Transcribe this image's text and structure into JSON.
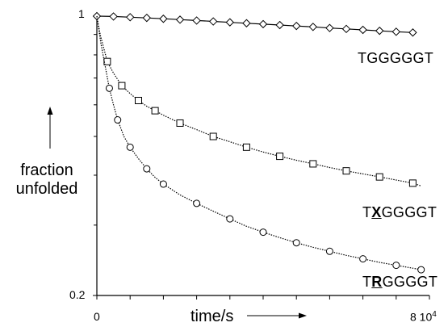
{
  "chart_data": {
    "type": "line",
    "title": "",
    "xlabel": "time/s",
    "ylabel_line1": "fraction",
    "ylabel_line2": "unfolded",
    "y_scale": "log",
    "xlim": [
      0,
      80000
    ],
    "ylim": [
      0.2,
      1
    ],
    "x_tick_labels": [
      "0",
      "8 10",
      "4"
    ],
    "y_tick_labels": [
      "1",
      "0.2"
    ],
    "grid": false,
    "legend": "none",
    "series": [
      {
        "label_prefix": "TGGGGGT",
        "label_bold": "",
        "label_suffix": "",
        "marker": "diamond",
        "line": "solid",
        "color": "#000000",
        "x": [
          0,
          4000,
          8000,
          12000,
          16000,
          20000,
          24000,
          28000,
          32000,
          36000,
          40000,
          44000,
          48000,
          52000,
          56000,
          60000,
          64000,
          68000,
          72000,
          76000
        ],
        "y": [
          1.0,
          0.998,
          0.994,
          0.99,
          0.985,
          0.98,
          0.975,
          0.97,
          0.965,
          0.96,
          0.955,
          0.95,
          0.945,
          0.94,
          0.934,
          0.929,
          0.924,
          0.919,
          0.914,
          0.91
        ]
      },
      {
        "label_prefix": "T",
        "label_bold": "X",
        "label_suffix": "GGGGT",
        "marker": "square",
        "line": "dotted",
        "color": "#000000",
        "x": [
          0,
          800,
          2500,
          4000,
          6000,
          8000,
          10000,
          12000,
          14000,
          16000,
          20000,
          24000,
          28000,
          32000,
          36000,
          40000,
          44000,
          48000,
          52000,
          56000,
          60000,
          64000,
          68000,
          72000,
          76000,
          78000
        ],
        "y": [
          1.0,
          0.9,
          0.77,
          0.72,
          0.67,
          0.64,
          0.615,
          0.595,
          0.58,
          0.565,
          0.54,
          0.52,
          0.5,
          0.485,
          0.47,
          0.457,
          0.446,
          0.436,
          0.427,
          0.418,
          0.41,
          0.403,
          0.396,
          0.389,
          0.382,
          0.376
        ]
      },
      {
        "label_prefix": "T",
        "label_bold": "R",
        "label_suffix": "GGGGT",
        "marker": "circle",
        "line": "dotted",
        "color": "#000000",
        "x": [
          0,
          300,
          1000,
          2000,
          3000,
          4000,
          5000,
          6500,
          8000,
          10000,
          12000,
          14000,
          16000,
          20000,
          24000,
          28000,
          32000,
          36000,
          40000,
          44000,
          48000,
          52000,
          56000,
          60000,
          64000,
          68000,
          72000,
          76000,
          78000
        ],
        "y": [
          1.0,
          0.95,
          0.85,
          0.75,
          0.66,
          0.6,
          0.55,
          0.5,
          0.47,
          0.44,
          0.415,
          0.395,
          0.38,
          0.357,
          0.34,
          0.325,
          0.311,
          0.298,
          0.288,
          0.279,
          0.271,
          0.264,
          0.258,
          0.252,
          0.247,
          0.242,
          0.238,
          0.234,
          0.232
        ]
      }
    ]
  }
}
